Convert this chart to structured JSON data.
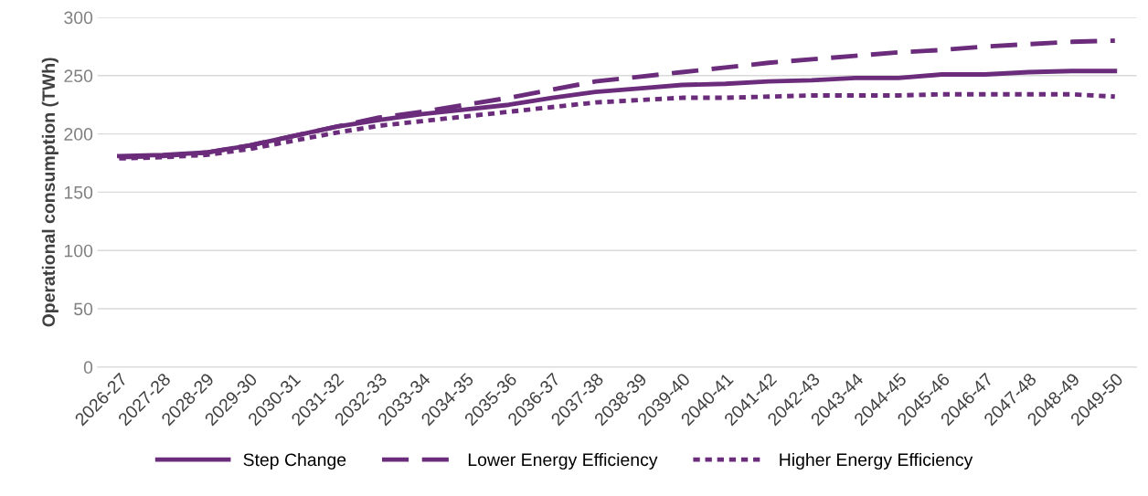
{
  "chart_data": {
    "type": "line",
    "ylabel": "Operational consumption (TWh)",
    "categories": [
      "2026-27",
      "2027-28",
      "2028-29",
      "2029-30",
      "2030-31",
      "2031-32",
      "2032-33",
      "2033-34",
      "2034-35",
      "2035-36",
      "2036-37",
      "2037-38",
      "2038-39",
      "2039-40",
      "2040-41",
      "2041-42",
      "2042-43",
      "2043-44",
      "2044-45",
      "2045-46",
      "2046-47",
      "2047-48",
      "2048-49",
      "2049-50"
    ],
    "series": [
      {
        "name": "Step Change",
        "color": "#6b2d7b",
        "line_style": "solid",
        "values": [
          181,
          182,
          184,
          190,
          198,
          206,
          212,
          217,
          221,
          225,
          231,
          236,
          239,
          242,
          243,
          245,
          246,
          248,
          248,
          251,
          251,
          253,
          254,
          254
        ]
      },
      {
        "name": "Lower Energy Efficiency",
        "color": "#6b2d7b",
        "line_style": "dashed",
        "values": [
          180,
          181,
          184,
          190,
          198,
          206,
          214,
          219,
          225,
          231,
          238,
          245,
          249,
          253,
          257,
          261,
          264,
          267,
          270,
          272,
          275,
          277,
          279,
          280
        ]
      },
      {
        "name": "Higher Energy Efficiency",
        "color": "#6b2d7b",
        "line_style": "dotted",
        "values": [
          179,
          180,
          182,
          187,
          194,
          201,
          207,
          211,
          215,
          219,
          223,
          227,
          229,
          231,
          231,
          232,
          233,
          233,
          233,
          234,
          234,
          234,
          234,
          232
        ]
      }
    ],
    "ylim": [
      0,
      300
    ],
    "yticks": [
      0,
      50,
      100,
      150,
      200,
      250,
      300
    ],
    "grid": "y",
    "legend": "bottom",
    "marker": "none"
  }
}
